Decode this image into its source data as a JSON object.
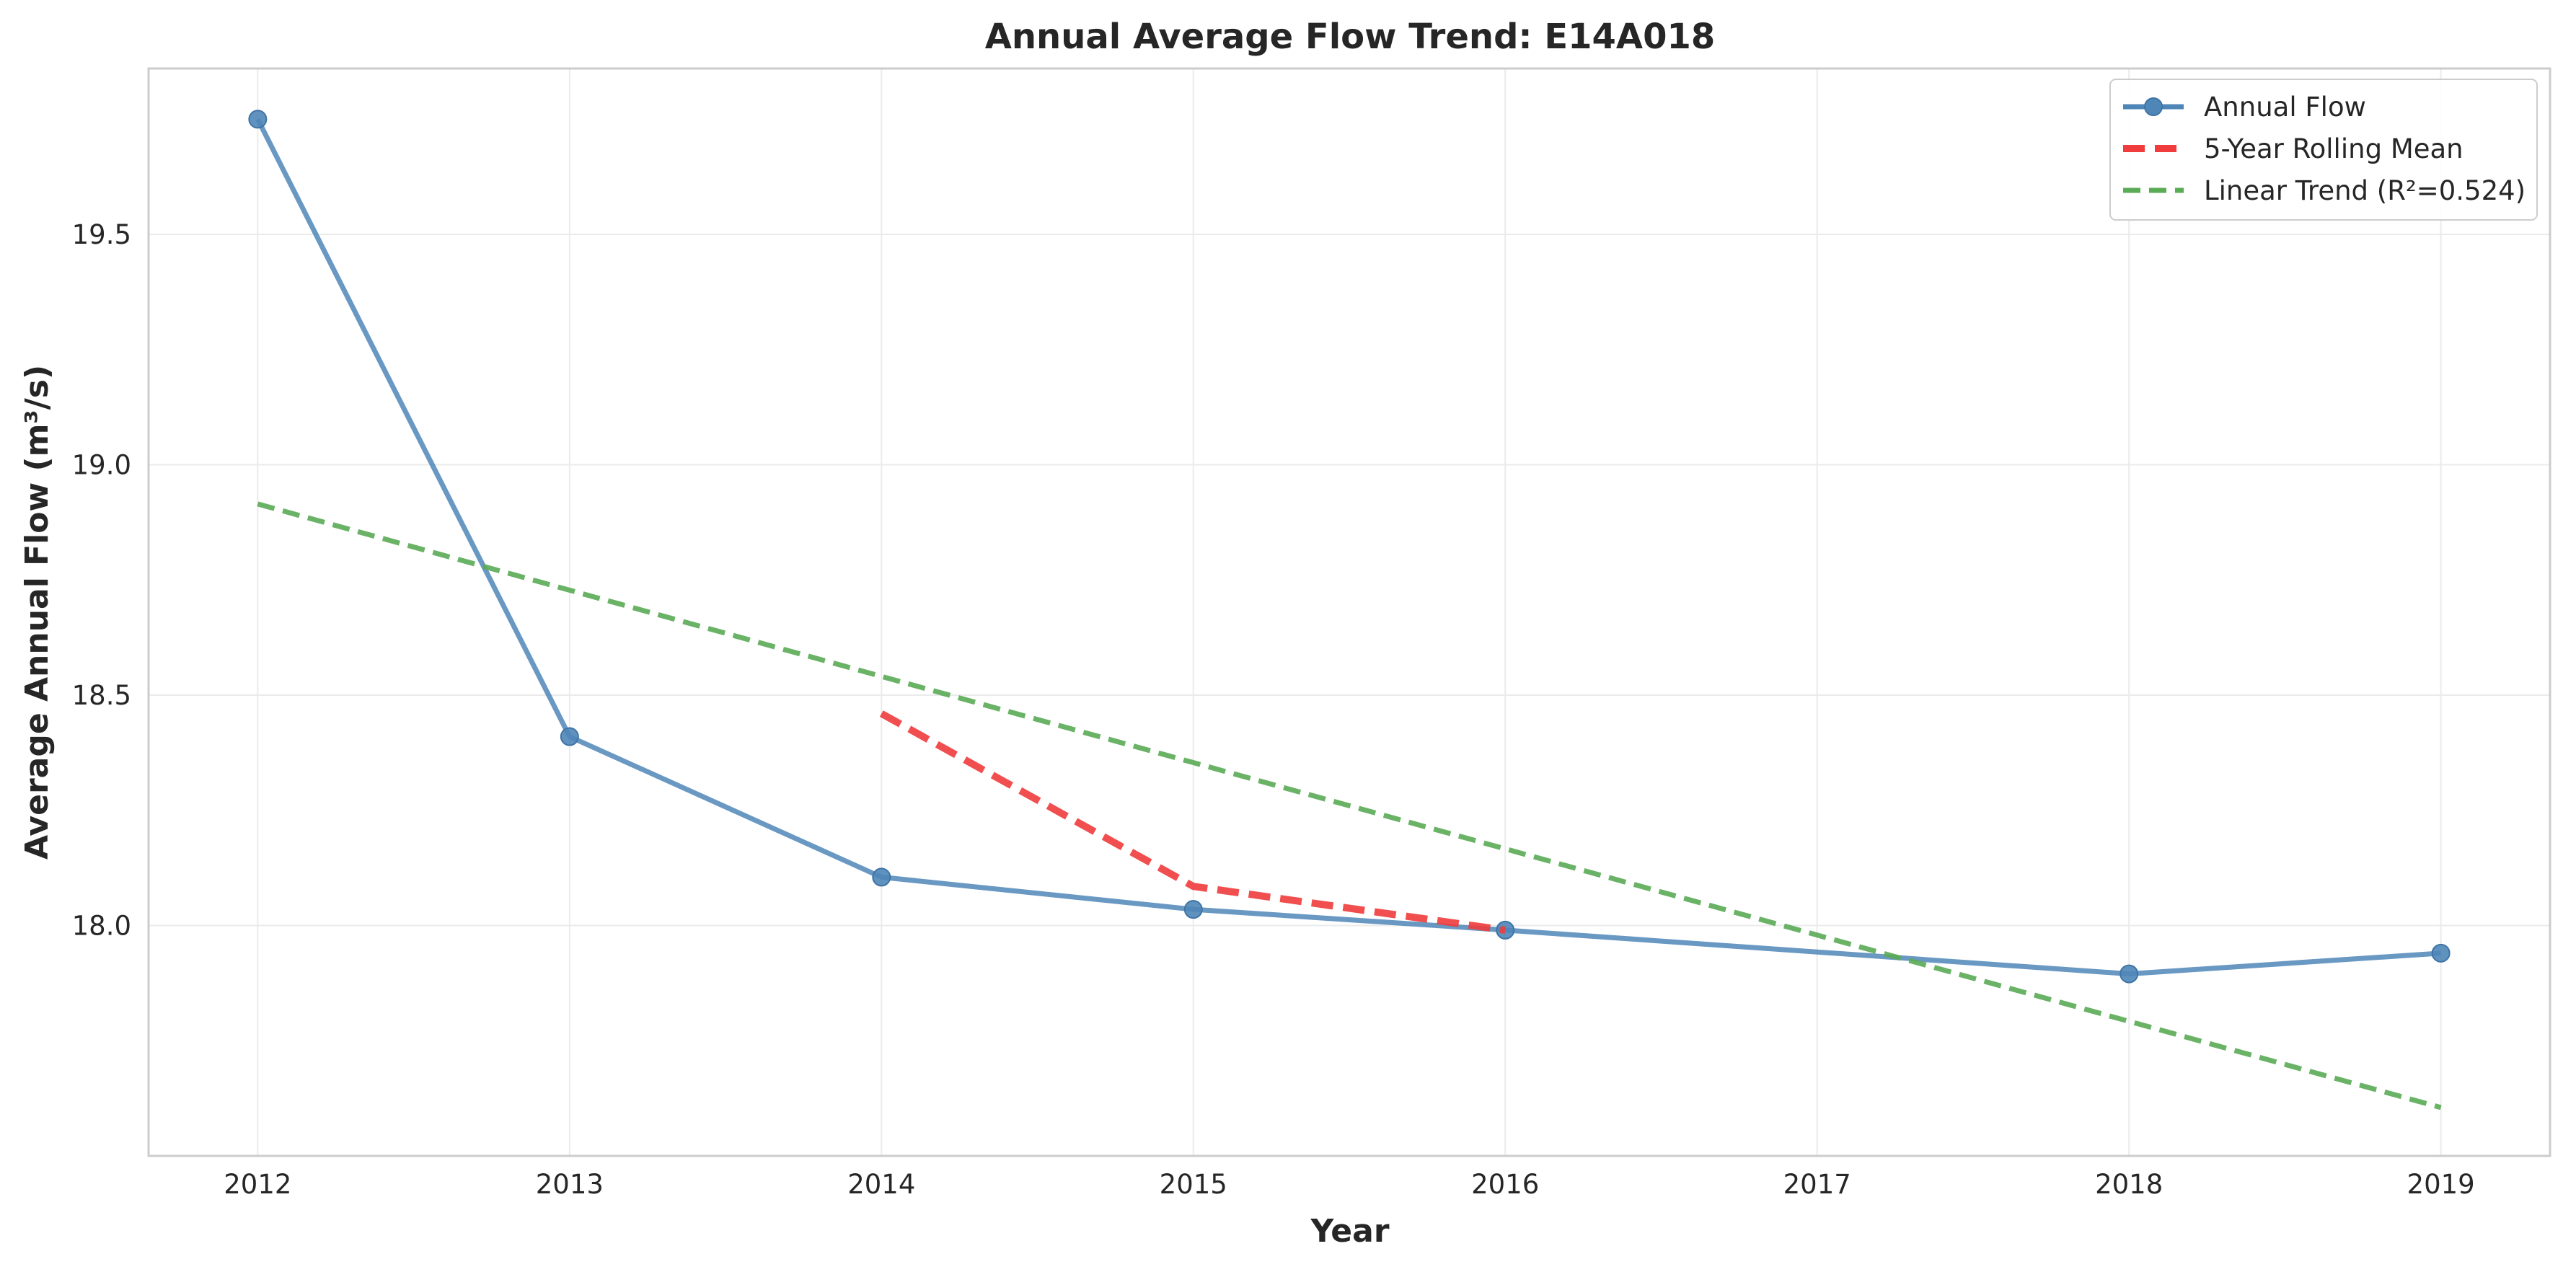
{
  "chart_data": {
    "type": "line",
    "title": "Annual Average Flow Trend: E14A018",
    "xlabel": "Year",
    "ylabel": "Average Annual Flow (m³/s)",
    "x": [
      2012,
      2013,
      2014,
      2015,
      2016,
      2017,
      2018,
      2019
    ],
    "xlim": [
      2011.65,
      2019.35
    ],
    "ylim": [
      17.5,
      19.86
    ],
    "xticks": [
      2012,
      2013,
      2014,
      2015,
      2016,
      2017,
      2018,
      2019
    ],
    "yticks": [
      18.0,
      18.5,
      19.0,
      19.5
    ],
    "ytick_labels": [
      "18.0",
      "18.5",
      "19.0",
      "19.5"
    ],
    "grid": true,
    "legend_position": "top-right",
    "series": [
      {
        "name": "Annual Flow",
        "style": "solid-markers",
        "color": "#4f86b8",
        "x": [
          2012,
          2013,
          2014,
          2015,
          2016,
          2018,
          2019
        ],
        "values": [
          19.75,
          18.41,
          18.105,
          18.035,
          17.99,
          17.895,
          17.94
        ]
      },
      {
        "name": "5-Year Rolling Mean",
        "style": "dashed",
        "color": "#f03c3c",
        "x": [
          2014,
          2015,
          2016
        ],
        "values": [
          18.46,
          18.085,
          17.99
        ]
      },
      {
        "name": "Linear Trend (R²=0.524)",
        "style": "dashed",
        "color": "#5aab55",
        "x": [
          2012,
          2019
        ],
        "values": [
          18.915,
          17.605
        ]
      }
    ]
  }
}
